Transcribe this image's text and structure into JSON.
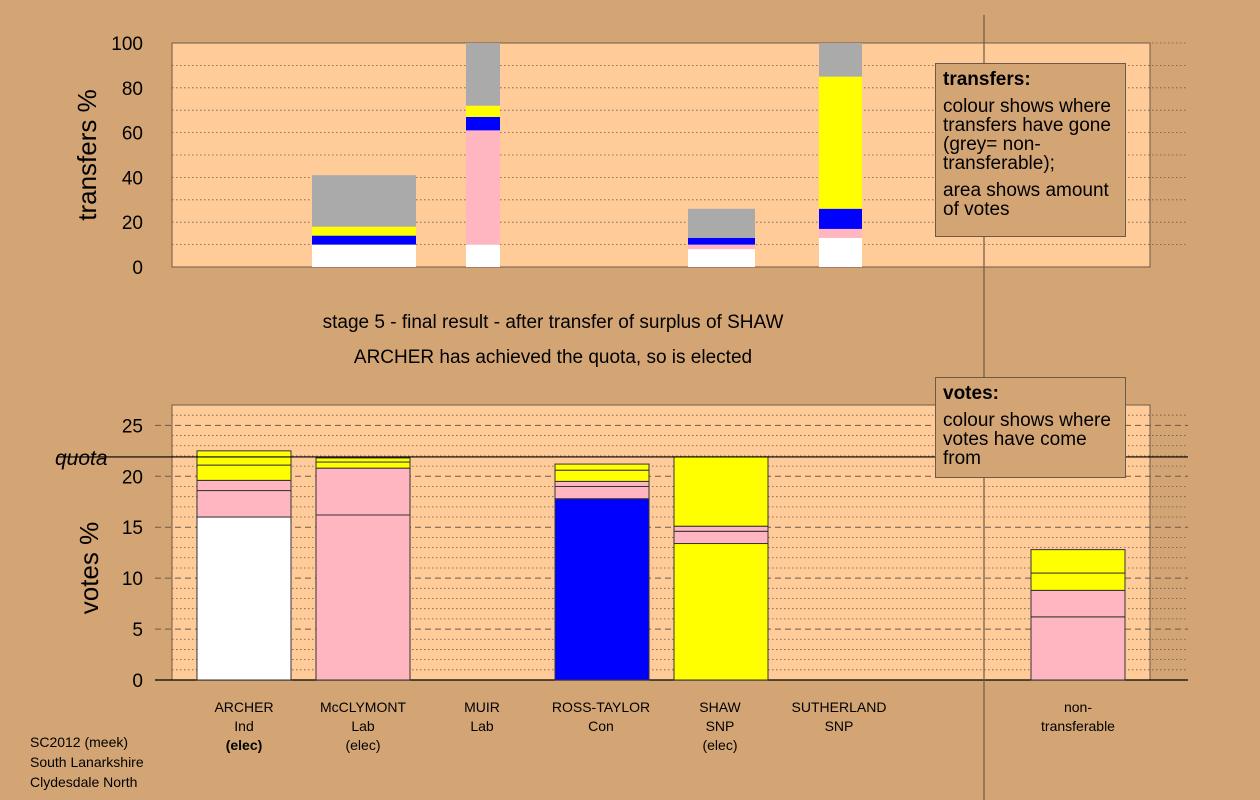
{
  "stage_text": {
    "line1": "stage 5 - final result - after transfer of surplus of SHAW",
    "line2": "ARCHER has achieved the quota, so is elected"
  },
  "footer": {
    "line1": "SC2012 (meek)",
    "line2": "South Lanarkshire",
    "line3": "Clydesdale North"
  },
  "transfers_legend": {
    "title": "transfers:",
    "text1": "colour shows where transfers have gone (grey= non-transferable);",
    "text2": "area shows amount of votes"
  },
  "votes_legend": {
    "title": "votes:",
    "text1": "colour shows where votes have come from"
  },
  "colors": {
    "background": "#d4a574",
    "plot_background": "#ffcc99",
    "ARCHER": "#ffffff",
    "Lab": "#ffb6c1",
    "Con": "#0000ff",
    "SNP": "#ffff00",
    "non_transferable": "#aaaaaa"
  },
  "chart_data": [
    {
      "type": "bar",
      "stacked": true,
      "ylabel": "transfers %",
      "ylim": [
        0,
        100
      ],
      "yticks": [
        0,
        20,
        40,
        60,
        80,
        100
      ],
      "grid": true,
      "bars": [
        {
          "segments": [
            {
              "party": "ARCHER",
              "value": 10
            },
            {
              "party": "Lab",
              "value": 0
            },
            {
              "party": "Con",
              "value": 4
            },
            {
              "party": "SNP",
              "value": 4
            },
            {
              "party": "non_transferable",
              "value": 23
            }
          ]
        },
        {
          "segments": [
            {
              "party": "ARCHER",
              "value": 10
            },
            {
              "party": "Lab",
              "value": 51
            },
            {
              "party": "Con",
              "value": 6
            },
            {
              "party": "SNP",
              "value": 5
            },
            {
              "party": "non_transferable",
              "value": 28
            }
          ]
        },
        {
          "segments": [
            {
              "party": "ARCHER",
              "value": 8
            },
            {
              "party": "Lab",
              "value": 2
            },
            {
              "party": "Con",
              "value": 3
            },
            {
              "party": "SNP",
              "value": 0
            },
            {
              "party": "non_transferable",
              "value": 13
            }
          ]
        },
        {
          "segments": [
            {
              "party": "ARCHER",
              "value": 13
            },
            {
              "party": "Lab",
              "value": 4
            },
            {
              "party": "Con",
              "value": 9
            },
            {
              "party": "SNP",
              "value": 59
            },
            {
              "party": "non_transferable",
              "value": 15
            }
          ]
        }
      ]
    },
    {
      "type": "bar",
      "stacked": true,
      "ylabel": "votes %",
      "ylim": [
        0,
        27
      ],
      "yticks": [
        0,
        5,
        10,
        15,
        20,
        25
      ],
      "quota": 21.9,
      "quota_label": "quota",
      "grid": true,
      "categories": [
        {
          "name": "ARCHER",
          "party": "Ind",
          "status": "(elec)"
        },
        {
          "name": "McCLYMONT",
          "party": "Lab",
          "status": "(elec)"
        },
        {
          "name": "MUIR",
          "party": "Lab",
          "status": ""
        },
        {
          "name": "ROSS-TAYLOR",
          "party": "Con",
          "status": ""
        },
        {
          "name": "SHAW",
          "party": "SNP",
          "status": "(elec)"
        },
        {
          "name": "SUTHERLAND",
          "party": "SNP",
          "status": ""
        },
        {
          "name": "non-\ntransferable",
          "party": "",
          "status": ""
        }
      ],
      "stacks": [
        [
          {
            "party": "ARCHER",
            "value": 16.0
          },
          {
            "party": "Lab",
            "value": 2.6
          },
          {
            "party": "Lab",
            "value": 1.0
          },
          {
            "party": "SNP",
            "value": 1.5
          },
          {
            "party": "SNP",
            "value": 1.4
          }
        ],
        [
          {
            "party": "Lab",
            "value": 16.2
          },
          {
            "party": "Lab",
            "value": 4.6
          },
          {
            "party": "SNP",
            "value": 0.6
          },
          {
            "party": "SNP",
            "value": 0.4
          }
        ],
        [],
        [
          {
            "party": "Con",
            "value": 17.8
          },
          {
            "party": "Lab",
            "value": 1.2
          },
          {
            "party": "Lab",
            "value": 0.5
          },
          {
            "party": "SNP",
            "value": 1.1
          },
          {
            "party": "SNP",
            "value": 0.6
          }
        ],
        [
          {
            "party": "SNP",
            "value": 13.4
          },
          {
            "party": "Lab",
            "value": 1.2
          },
          {
            "party": "Lab",
            "value": 0.5
          },
          {
            "party": "SNP",
            "value": 6.8
          }
        ],
        [],
        [
          {
            "party": "Lab",
            "value": 6.2
          },
          {
            "party": "Lab",
            "value": 2.6
          },
          {
            "party": "SNP",
            "value": 1.7
          },
          {
            "party": "SNP",
            "value": 2.3
          }
        ]
      ]
    }
  ]
}
